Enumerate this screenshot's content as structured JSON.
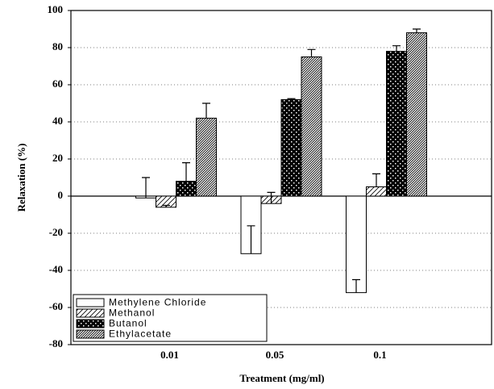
{
  "chart_data": {
    "type": "bar",
    "x_label": "Treatment (mg/ml)",
    "y_label": "Relaxation (%)",
    "categories": [
      "0.01",
      "0.05",
      "0.1"
    ],
    "series": [
      {
        "name": "Methylene Chloride",
        "color": "#000000",
        "pattern": "none",
        "values": [
          -1,
          -31,
          -52
        ],
        "errors": [
          11,
          15,
          7
        ]
      },
      {
        "name": "Methanol",
        "color": "#000000",
        "pattern": "diagonal",
        "values": [
          -6,
          -4,
          5
        ],
        "errors": [
          1,
          6,
          7
        ]
      },
      {
        "name": "Butanol",
        "color": "#000000",
        "pattern": "crosshatch",
        "values": [
          8,
          52,
          78
        ],
        "errors": [
          10,
          0.5,
          3
        ]
      },
      {
        "name": "Ethylacetate",
        "color": "#000000",
        "pattern": "dense-diagonal",
        "values": [
          42,
          75,
          88
        ],
        "errors": [
          8,
          4,
          2
        ]
      }
    ],
    "ylim": [
      -80,
      100
    ],
    "yticks": [
      -80,
      -60,
      -40,
      -20,
      0,
      20,
      40,
      60,
      80,
      100
    ],
    "grid": true,
    "legend": "lower left"
  }
}
